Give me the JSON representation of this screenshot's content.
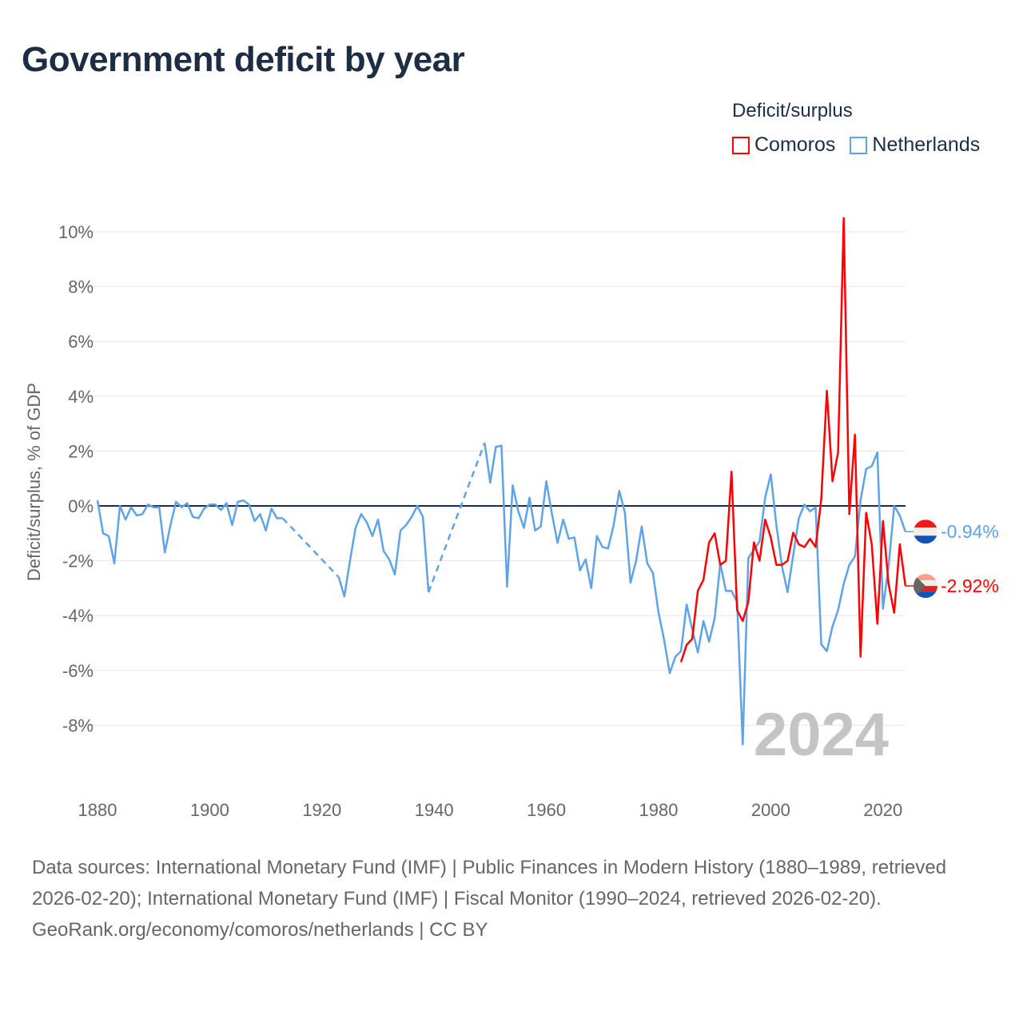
{
  "title": "Government deficit by year",
  "legend": {
    "title": "Deficit/surplus",
    "items": [
      {
        "name": "Comoros",
        "color": "#ff0000"
      },
      {
        "name": "Netherlands",
        "color": "#5ea3e8"
      }
    ]
  },
  "footer": {
    "sources": "Data sources: International Monetary Fund (IMF) | Public Finances in Modern History (1880–1989, retrieved 2026-02-20); International Monetary Fund (IMF) | Fiscal Monitor (1990–2024, retrieved 2026-02-20).",
    "credit": "GeoRank.org/economy/comoros/netherlands | CC BY"
  },
  "chart_data": {
    "type": "line",
    "title": "Government deficit by year",
    "ylabel": "Deficit/surplus, % of GDP",
    "xlabel": "",
    "xlim": [
      1880,
      2024
    ],
    "ylim": [
      -10,
      10.5
    ],
    "xticks": [
      1880,
      1900,
      1920,
      1940,
      1960,
      1980,
      2000,
      2020
    ],
    "xtick_labels": [
      "1880",
      "1900",
      "1920",
      "1940",
      "1960",
      "1980",
      "2000",
      "2020"
    ],
    "yticks": [
      10,
      8,
      6,
      4,
      2,
      0,
      -2,
      -4,
      -6,
      -8
    ],
    "ytick_labels": [
      "10%",
      "8%",
      "6%",
      "4%",
      "2%",
      "0%",
      "-2%",
      "-4%",
      "-6%",
      "-8%"
    ],
    "year_watermark": "2024",
    "grid": true,
    "legend_position": "top-right",
    "series": [
      {
        "name": "Netherlands",
        "color": "#5ea3e8",
        "end_label": "-0.94%",
        "segments": [
          {
            "start": 1880,
            "values": [
              0.2,
              -1.0,
              -1.1,
              -2.1,
              0,
              -0.5,
              -0.05,
              -0.35,
              -0.3,
              0.05,
              -0.05,
              -0.05,
              -1.7,
              -0.7,
              0.15,
              -0.05,
              0.1,
              -0.4,
              -0.45,
              -0.1,
              0.05,
              0.05,
              -0.15,
              0.1,
              -0.7,
              0.15,
              0.2,
              0.05,
              -0.55,
              -0.3,
              -0.9,
              -0.1,
              -0.45,
              -0.45
            ]
          },
          {
            "start": 1923,
            "values": [
              -2.6,
              -3.3,
              -2.0,
              -0.8,
              -0.3,
              -0.6,
              -1.1,
              -0.5,
              -1.65,
              -1.95,
              -2.5,
              -0.9,
              -0.7,
              -0.4,
              0.0,
              -0.4,
              -3.15
            ]
          },
          {
            "start": 1949,
            "values": [
              2.3,
              0.85,
              2.15,
              2.2,
              -2.95,
              0.75,
              -0.2,
              -0.8,
              0.3,
              -0.9,
              -0.75,
              0.9,
              -0.3,
              -1.35,
              -0.5,
              -1.2,
              -1.15,
              -2.35,
              -1.95,
              -3.0,
              -1.1,
              -1.5,
              -1.55,
              -0.7,
              0.55,
              -0.25,
              -2.8,
              -2.0,
              -0.75,
              -2.1,
              -2.45,
              -3.9,
              -4.9,
              -6.1,
              -5.5,
              -5.3,
              -3.6,
              -4.5,
              -5.35,
              -4.2,
              -4.95,
              -4.1,
              -2.1,
              -3.1,
              -3.1,
              -3.5,
              -8.7,
              -1.9,
              -1.6,
              -1.3,
              0.3,
              1.15,
              -0.7,
              -2.2,
              -3.15,
              -1.8,
              -0.45,
              0.05,
              -0.2,
              -0.05,
              -5.05,
              -5.3,
              -4.4,
              -3.8,
              -2.85,
              -2.15,
              -1.85,
              0.2,
              1.35,
              1.45,
              1.95,
              -3.75,
              -2.2,
              0.0,
              -0.35,
              -0.94
            ]
          }
        ]
      },
      {
        "name": "Comoros",
        "color": "#ff0000",
        "end_label": "-2.92%",
        "segments": [
          {
            "start": 1984,
            "values": [
              -5.7,
              -5.07,
              -4.85,
              -3.1,
              -2.7,
              -1.33,
              -1.0,
              -2.15,
              -2.0,
              1.25,
              -3.8,
              -4.2,
              -3.5,
              -1.33,
              -2.0,
              -0.5,
              -1.15,
              -2.15,
              -2.15,
              -2.0,
              -0.98,
              -1.4,
              -1.5,
              -1.2,
              -1.5,
              0.25,
              4.2,
              0.9,
              1.95,
              10.5,
              -0.3,
              2.6,
              -5.5,
              -0.25,
              -1.4,
              -4.3,
              -0.55,
              -2.85,
              -3.9,
              -1.4,
              -2.92
            ]
          }
        ]
      }
    ]
  }
}
